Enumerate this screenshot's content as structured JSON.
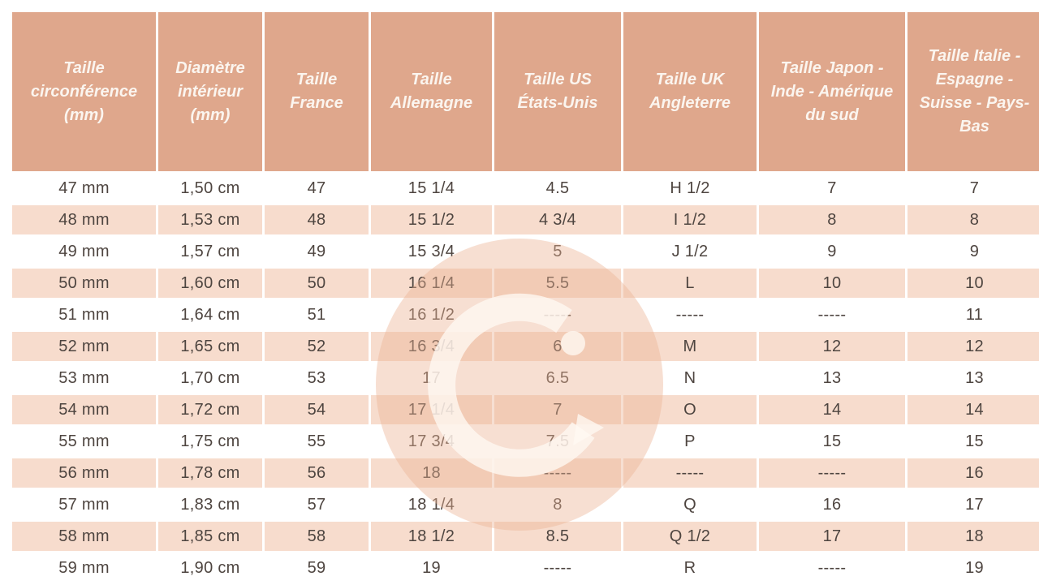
{
  "table": {
    "columns": [
      "Taille circonférence (mm)",
      "Diamètre intérieur (mm)",
      "Taille France",
      "Taille Allemagne",
      "Taille US États-Unis",
      "Taille UK Angleterre",
      "Taille Japon - Inde - Amérique du sud",
      "Taille Italie - Espagne - Suisse - Pays-Bas"
    ],
    "rows": [
      [
        "47 mm",
        "1,50 cm",
        "47",
        "15 1/4",
        "4.5",
        "H 1/2",
        "7",
        "7"
      ],
      [
        "48 mm",
        "1,53 cm",
        "48",
        "15 1/2",
        "4 3/4",
        "I 1/2",
        "8",
        "8"
      ],
      [
        "49 mm",
        "1,57 cm",
        "49",
        "15 3/4",
        "5",
        "J 1/2",
        "9",
        "9"
      ],
      [
        "50 mm",
        "1,60 cm",
        "50",
        "16 1/4",
        "5.5",
        "L",
        "10",
        "10"
      ],
      [
        "51 mm",
        "1,64 cm",
        "51",
        "16 1/2",
        "-----",
        "-----",
        "-----",
        "11"
      ],
      [
        "52 mm",
        "1,65 cm",
        "52",
        "16 3/4",
        "6",
        "M",
        "12",
        "12"
      ],
      [
        "53 mm",
        "1,70 cm",
        "53",
        "17",
        "6.5",
        "N",
        "13",
        "13"
      ],
      [
        "54 mm",
        "1,72 cm",
        "54",
        "17 1/4",
        "7",
        "O",
        "14",
        "14"
      ],
      [
        "55 mm",
        "1,75 cm",
        "55",
        "17 3/4",
        "7.5",
        "P",
        "15",
        "15"
      ],
      [
        "56 mm",
        "1,78 cm",
        "56",
        "18",
        "-----",
        "-----",
        "-----",
        "16"
      ],
      [
        "57 mm",
        "1,83 cm",
        "57",
        "18 1/4",
        "8",
        "Q",
        "16",
        "17"
      ],
      [
        "58 mm",
        "1,85 cm",
        "58",
        "18 1/2",
        "8.5",
        "Q 1/2",
        "17",
        "18"
      ],
      [
        "59 mm",
        "1,90 cm",
        "59",
        "19",
        "-----",
        "R",
        "-----",
        "19"
      ]
    ]
  },
  "watermark": {
    "icon": "brand-g-logo"
  },
  "colors": {
    "header_bg": "#DFA78C",
    "header_text": "#FBF5EF",
    "stripe_bg": "#F7DCCD",
    "body_text": "#4E4540",
    "watermark_disc": "rgba(236,179,148,0.42)",
    "watermark_glyph": "rgba(255,248,242,0.78)"
  }
}
